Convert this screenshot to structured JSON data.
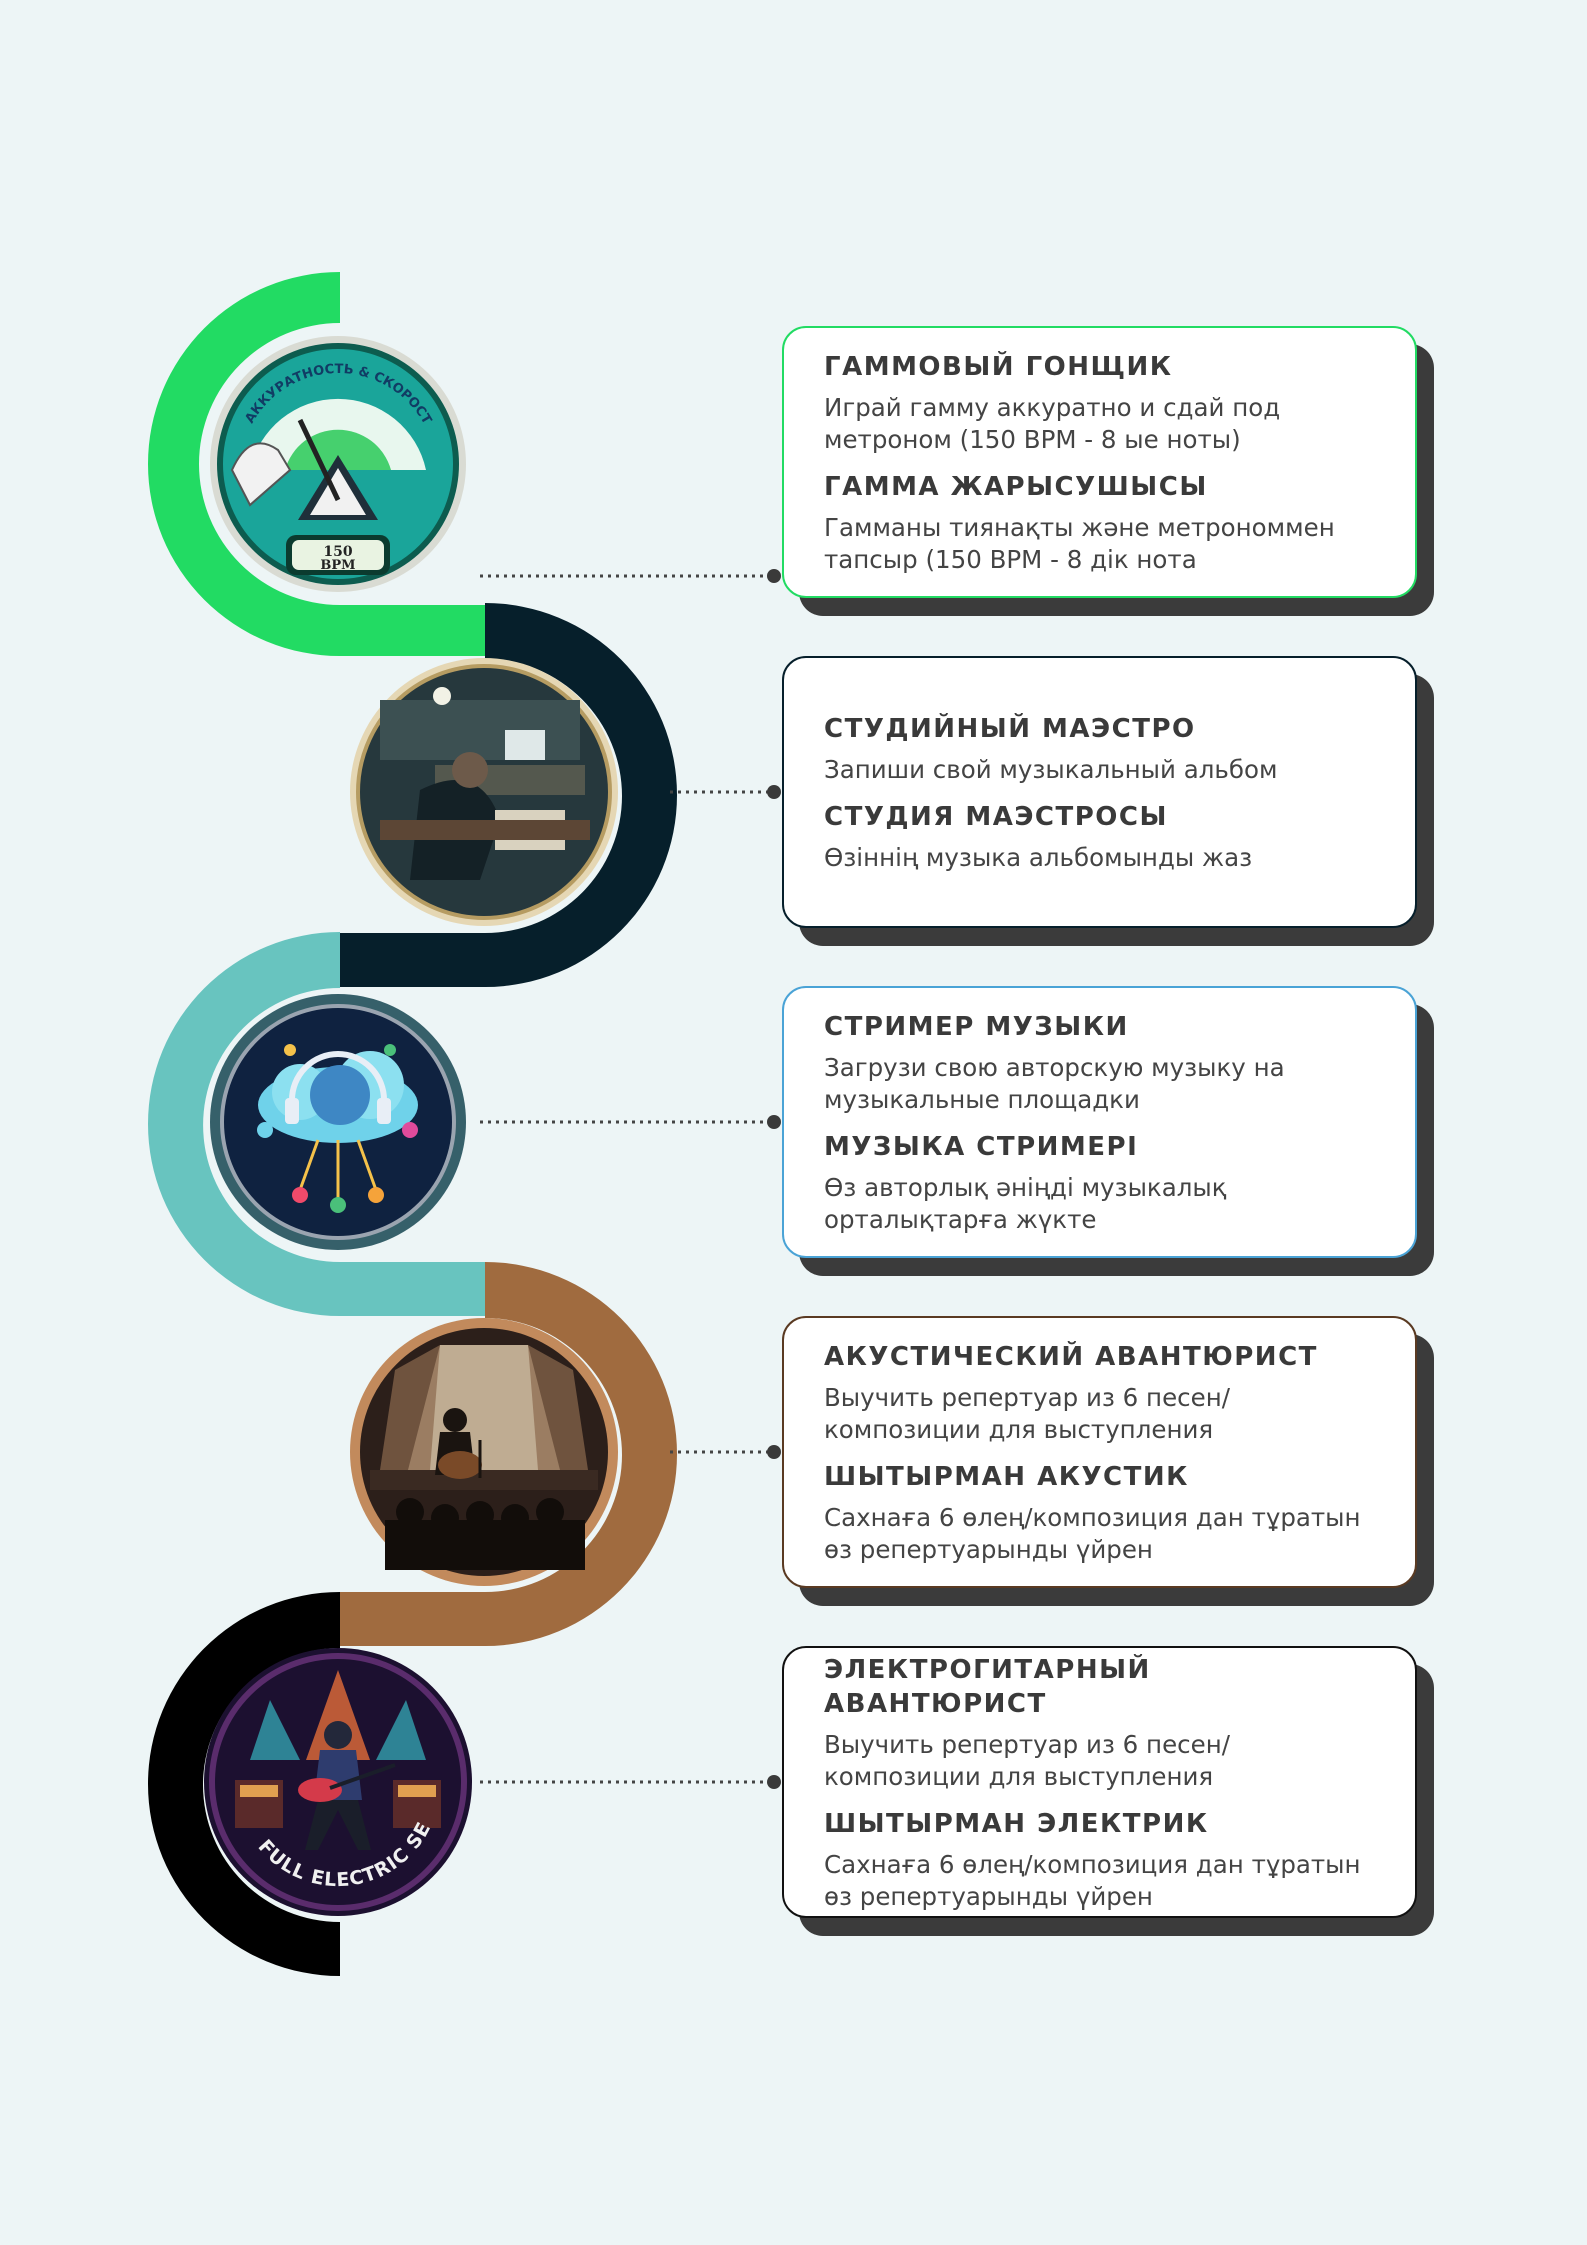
{
  "colors": {
    "background": "#edf5f6",
    "green": "#22db63",
    "dark_navy": "#061f2b",
    "teal": "#68c4bf",
    "brown": "#a06b3f",
    "black": "#000000",
    "card_shadow": "#3b3b3b"
  },
  "steps": [
    {
      "badge": {
        "icon": "metronome-tuner-badge-icon",
        "arc_text": "АККУРАТНОСТЬ & СКОРОСТЬ",
        "bpm_value": "150",
        "bpm_unit": "BPM"
      },
      "accent": "#22db63",
      "title_ru": "ГАММОВЫЙ ГОНЩИК",
      "desc_ru": "Играй гамму аккуратно и  сдай под метроном (150 BPM - 8 ые ноты)",
      "title_kk": "ГАММА ЖАРЫСУШЫСЫ",
      "desc_kk": "Гамманы тиянақты және метрономмен тапсыр (150 BPM - 8 дік нота"
    },
    {
      "badge": {
        "icon": "recording-studio-badge-icon"
      },
      "accent": "#061f2b",
      "title_ru": "СТУДИЙНЫЙ МАЭСТРО",
      "desc_ru": "Запиши свой музыкальный альбом",
      "title_kk": "СТУДИЯ МАЭСТРОСЫ",
      "desc_kk": "Өзіннің музыка альбомынды жаз"
    },
    {
      "badge": {
        "icon": "music-streaming-cloud-badge-icon"
      },
      "accent": "#68c4bf",
      "title_ru": "СТРИМЕР МУЗЫКИ",
      "desc_ru": "Загрузи свою авторскую музыку на музыкальные площадки",
      "title_kk": "МУЗЫКА СТРИМЕРІ",
      "desc_kk": "Өз авторлық әніңді музыкалық орталықтарға жүкте"
    },
    {
      "badge": {
        "icon": "acoustic-stage-performer-badge-icon"
      },
      "accent": "#a06b3f",
      "title_ru": "АКУСТИЧЕСКИЙ АВАНТЮРИСТ",
      "desc_ru": "Выучить репертуар из 6 песен/ композиции для выступления",
      "title_kk": "ШЫТЫРМАН АКУСТИК",
      "desc_kk": "Сахнаға 6 өлең/композиция дан тұратын өз репертуарынды үйрен"
    },
    {
      "badge": {
        "icon": "electric-guitar-concert-badge-icon",
        "arc_text": "FULL ELECTRIC SET"
      },
      "accent": "#000000",
      "title_ru": "ЭЛЕКТРОГИТАРНЫЙ АВАНТЮРИСТ",
      "desc_ru": "Выучить репертуар из 6 песен/ композиции для выступления",
      "title_kk": "ШЫТЫРМАН ЭЛЕКТРИК",
      "desc_kk": "Сахнаға 6 өлең/композиция дан тұратын өз репертуарынды үйрен"
    }
  ]
}
